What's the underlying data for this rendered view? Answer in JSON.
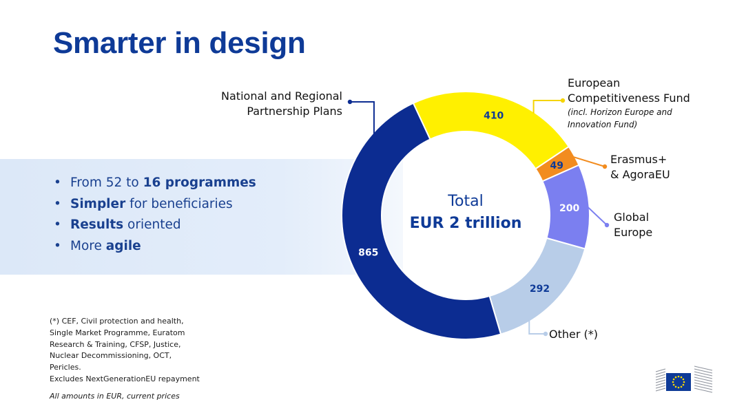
{
  "title": "Smarter in design",
  "bullets": [
    {
      "pre": "From 52 to ",
      "bold": "16 programmes",
      "post": ""
    },
    {
      "pre": "",
      "bold": "Simpler",
      "post": " for beneficiaries"
    },
    {
      "pre": "",
      "bold": "Results",
      "post": " oriented"
    },
    {
      "pre": "More ",
      "bold": "agile",
      "post": ""
    }
  ],
  "footnote": [
    "(*) CEF, Civil protection and health,",
    "Single Market Programme, Euratom",
    "Research & Training, CFSP, Justice,",
    "Nuclear Decommissioning, OCT,",
    "Pericles.",
    "Excludes NextGenerationEU repayment"
  ],
  "amounts_note": "All amounts in EUR, current prices",
  "chart_data": {
    "type": "pie",
    "donut": true,
    "center_text": {
      "line1": "Total",
      "line2": "EUR 2 trillion"
    },
    "slices": [
      {
        "name": "European Competitiveness Fund",
        "sub": "(incl. Horizon Europe and Innovation Fund)",
        "value": 410,
        "color": "#fff000",
        "label_color": "#0e3a97"
      },
      {
        "name": "Erasmus+ & AgoraEU",
        "value": 49,
        "color": "#f28c1f",
        "label_color": "#0e3a97"
      },
      {
        "name": "Global Europe",
        "value": 200,
        "color": "#7b7ff0",
        "label_color": "#ffffff"
      },
      {
        "name": "Other (*)",
        "value": 292,
        "color": "#b8cde8",
        "label_color": "#0e3a97"
      },
      {
        "name": "National and Regional Partnership Plans",
        "value": 865,
        "color": "#0c2c91",
        "label_color": "#ffffff"
      }
    ],
    "labels": {
      "ecf_line1": "European",
      "ecf_line2": "Competitiveness Fund",
      "ecf_sub1": "(incl. Horizon Europe and",
      "ecf_sub2": "Innovation Fund)",
      "erasmus_line1": "Erasmus+",
      "erasmus_line2": "& AgoraEU",
      "global_line1": "Global",
      "global_line2": "Europe",
      "other": "Other (*)",
      "nrpp_line1": "National and Regional",
      "nrpp_line2": "Partnership Plans"
    }
  }
}
